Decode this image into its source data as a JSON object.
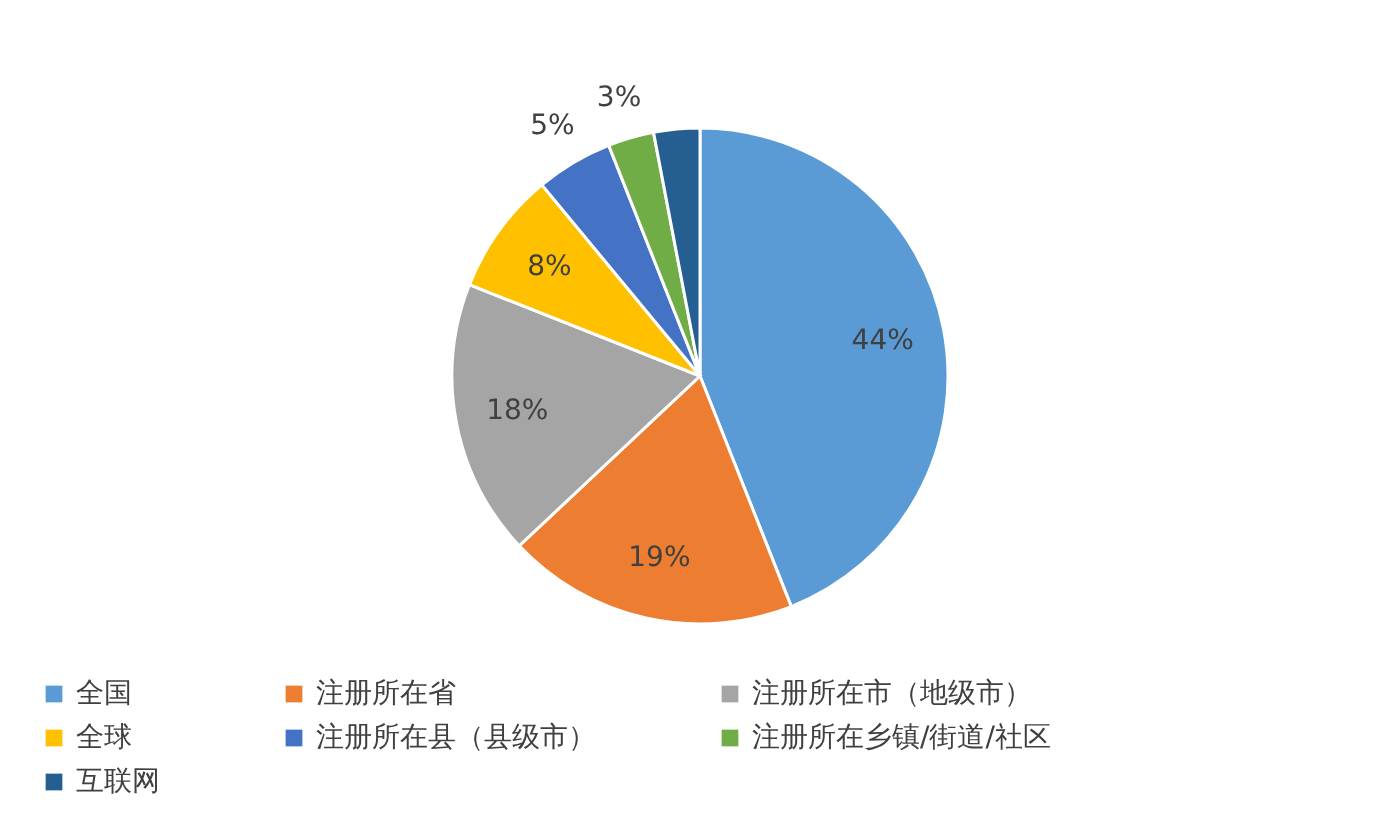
{
  "chart_data": {
    "type": "pie",
    "categories": [
      "全国",
      "注册所在省",
      "注册所在市（地级市）",
      "全球",
      "注册所在县（县级市）",
      "注册所在乡镇/街道/社区",
      "互联网"
    ],
    "values": [
      44,
      19,
      18,
      8,
      5,
      3,
      3
    ],
    "colors": [
      "#5b9bd5",
      "#ed7d31",
      "#a5a5a5",
      "#ffc000",
      "#4472c4",
      "#70ad47",
      "#255e91"
    ],
    "value_labels": [
      "44%",
      "19%",
      "18%",
      "8%",
      "5%",
      "3%",
      null
    ],
    "legend": "bottom"
  }
}
